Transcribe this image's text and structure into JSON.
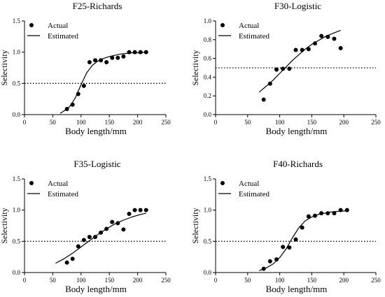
{
  "chart_data": [
    {
      "type": "scatter",
      "title": "F25-Richards",
      "xlabel": "Body length/mm",
      "ylabel": "Selectivity",
      "xlim": [
        0,
        250
      ],
      "ylim": [
        0,
        1.5
      ],
      "xticks": [
        "0",
        "50",
        "100",
        "150",
        "200",
        "250"
      ],
      "yticks": [
        "0.0",
        "0.5",
        "1.0",
        "1.5"
      ],
      "reference_line": 0.5,
      "legend": [
        "Actual",
        "Estimated"
      ],
      "actual": {
        "x": [
          75,
          85,
          95,
          105,
          115,
          125,
          135,
          145,
          155,
          165,
          175,
          185,
          195,
          205,
          215
        ],
        "y": [
          0.09,
          0.16,
          0.33,
          0.46,
          0.84,
          0.87,
          0.87,
          0.84,
          0.91,
          0.91,
          0.93,
          1.0,
          1.0,
          1.0,
          1.0
        ]
      },
      "estimated": {
        "x": [
          63,
          70,
          80,
          90,
          100,
          110,
          120,
          130,
          140,
          150,
          160,
          170,
          180,
          190,
          200,
          215
        ],
        "y": [
          0.02,
          0.06,
          0.13,
          0.27,
          0.48,
          0.67,
          0.79,
          0.86,
          0.9,
          0.93,
          0.95,
          0.97,
          0.98,
          0.99,
          0.99,
          1.0
        ]
      }
    },
    {
      "type": "scatter",
      "title": "F30-Logistic",
      "xlabel": "Body length/mm",
      "ylabel": "Selectivity",
      "xlim": [
        0,
        250
      ],
      "ylim": [
        0,
        1.0
      ],
      "xticks": [
        "0",
        "50",
        "100",
        "150",
        "200",
        "250"
      ],
      "yticks": [
        "0.0",
        "0.2",
        "0.4",
        "0.6",
        "0.8",
        "1.0"
      ],
      "reference_line": 0.5,
      "legend": [
        "Actual",
        "Estimated"
      ],
      "actual": {
        "x": [
          75,
          85,
          95,
          105,
          115,
          125,
          135,
          145,
          155,
          165,
          175,
          185,
          195
        ],
        "y": [
          0.16,
          0.33,
          0.48,
          0.49,
          0.49,
          0.69,
          0.69,
          0.7,
          0.76,
          0.84,
          0.83,
          0.81,
          0.71
        ]
      },
      "estimated": {
        "x": [
          68,
          80,
          90,
          100,
          110,
          120,
          130,
          140,
          150,
          160,
          170,
          180,
          195
        ],
        "y": [
          0.24,
          0.31,
          0.37,
          0.44,
          0.51,
          0.58,
          0.64,
          0.7,
          0.75,
          0.79,
          0.83,
          0.86,
          0.9
        ]
      }
    },
    {
      "type": "scatter",
      "title": "F35-Logistic",
      "xlabel": "Body length/mm",
      "ylabel": "Selectivity",
      "xlim": [
        0,
        250
      ],
      "ylim": [
        0,
        1.5
      ],
      "xticks": [
        "0",
        "50",
        "100",
        "150",
        "200",
        "250"
      ],
      "yticks": [
        "0.0",
        "0.5",
        "1.0",
        "1.5"
      ],
      "reference_line": 0.5,
      "legend": [
        "Actual",
        "Estimated"
      ],
      "actual": {
        "x": [
          75,
          85,
          95,
          105,
          115,
          125,
          135,
          145,
          155,
          165,
          175,
          185,
          195,
          205,
          215
        ],
        "y": [
          0.16,
          0.22,
          0.42,
          0.52,
          0.57,
          0.57,
          0.64,
          0.7,
          0.81,
          0.79,
          0.69,
          0.94,
          1.0,
          1.0,
          1.0
        ]
      },
      "estimated": {
        "x": [
          55,
          70,
          85,
          100,
          115,
          130,
          145,
          160,
          175,
          190,
          205,
          215
        ],
        "y": [
          0.15,
          0.22,
          0.31,
          0.41,
          0.51,
          0.61,
          0.7,
          0.78,
          0.84,
          0.89,
          0.93,
          0.95
        ]
      }
    },
    {
      "type": "scatter",
      "title": "F40-Richards",
      "xlabel": "Body length/mm",
      "ylabel": "Selectivity",
      "xlim": [
        0,
        250
      ],
      "ylim": [
        0,
        1.5
      ],
      "xticks": [
        "0",
        "50",
        "100",
        "150",
        "200",
        "250"
      ],
      "yticks": [
        "0.0",
        "0.5",
        "1.0",
        "1.5"
      ],
      "reference_line": 0.5,
      "legend": [
        "Actual",
        "Estimated"
      ],
      "actual": {
        "x": [
          75,
          85,
          95,
          105,
          115,
          125,
          135,
          145,
          155,
          165,
          175,
          185,
          195,
          205
        ],
        "y": [
          0.06,
          0.18,
          0.21,
          0.41,
          0.4,
          0.53,
          0.72,
          0.9,
          0.91,
          0.95,
          0.95,
          0.95,
          1.0,
          1.0
        ]
      },
      "estimated": {
        "x": [
          68,
          80,
          90,
          100,
          110,
          115,
          120,
          130,
          140,
          150,
          160,
          170,
          180,
          190,
          205
        ],
        "y": [
          0.03,
          0.08,
          0.14,
          0.24,
          0.38,
          0.47,
          0.56,
          0.72,
          0.83,
          0.89,
          0.93,
          0.95,
          0.97,
          0.98,
          0.99
        ]
      }
    }
  ]
}
